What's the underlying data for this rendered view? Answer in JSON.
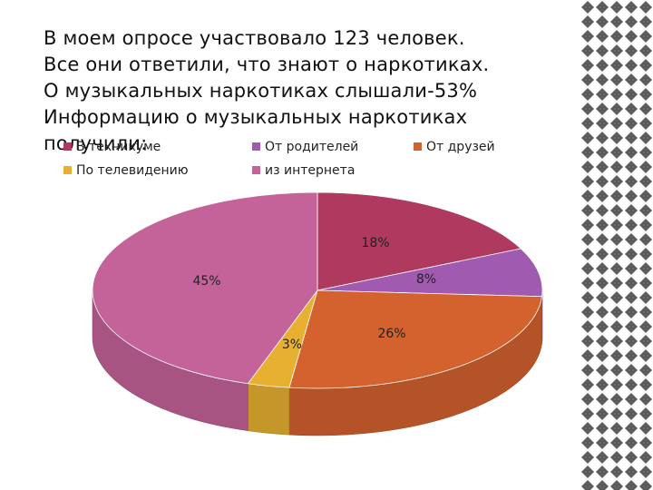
{
  "text": {
    "lines": [
      "В моем опросе участвовало 123 человек.",
      "Все они ответили, что знают о наркотиках.",
      "О музыкальных наркотиках слышали-53%",
      "Информацию о музыкальных наркотиках",
      "получили:"
    ]
  },
  "chart_data": {
    "type": "pie",
    "title": "",
    "legend": "top",
    "categories": [
      "В техникуме",
      "От родителей",
      "От друзей",
      "По телевидению",
      "из интернета"
    ],
    "values": [
      18,
      8,
      26,
      3,
      45
    ],
    "labels": [
      "18%",
      "8%",
      "26%",
      "3%",
      "45%"
    ],
    "colors": [
      "#b03a5f",
      "#a05ab0",
      "#d4622e",
      "#e8b030",
      "#c4639a"
    ]
  },
  "decor": {
    "pattern_colors": [
      "#5a5a5a",
      "#ffffff"
    ]
  }
}
